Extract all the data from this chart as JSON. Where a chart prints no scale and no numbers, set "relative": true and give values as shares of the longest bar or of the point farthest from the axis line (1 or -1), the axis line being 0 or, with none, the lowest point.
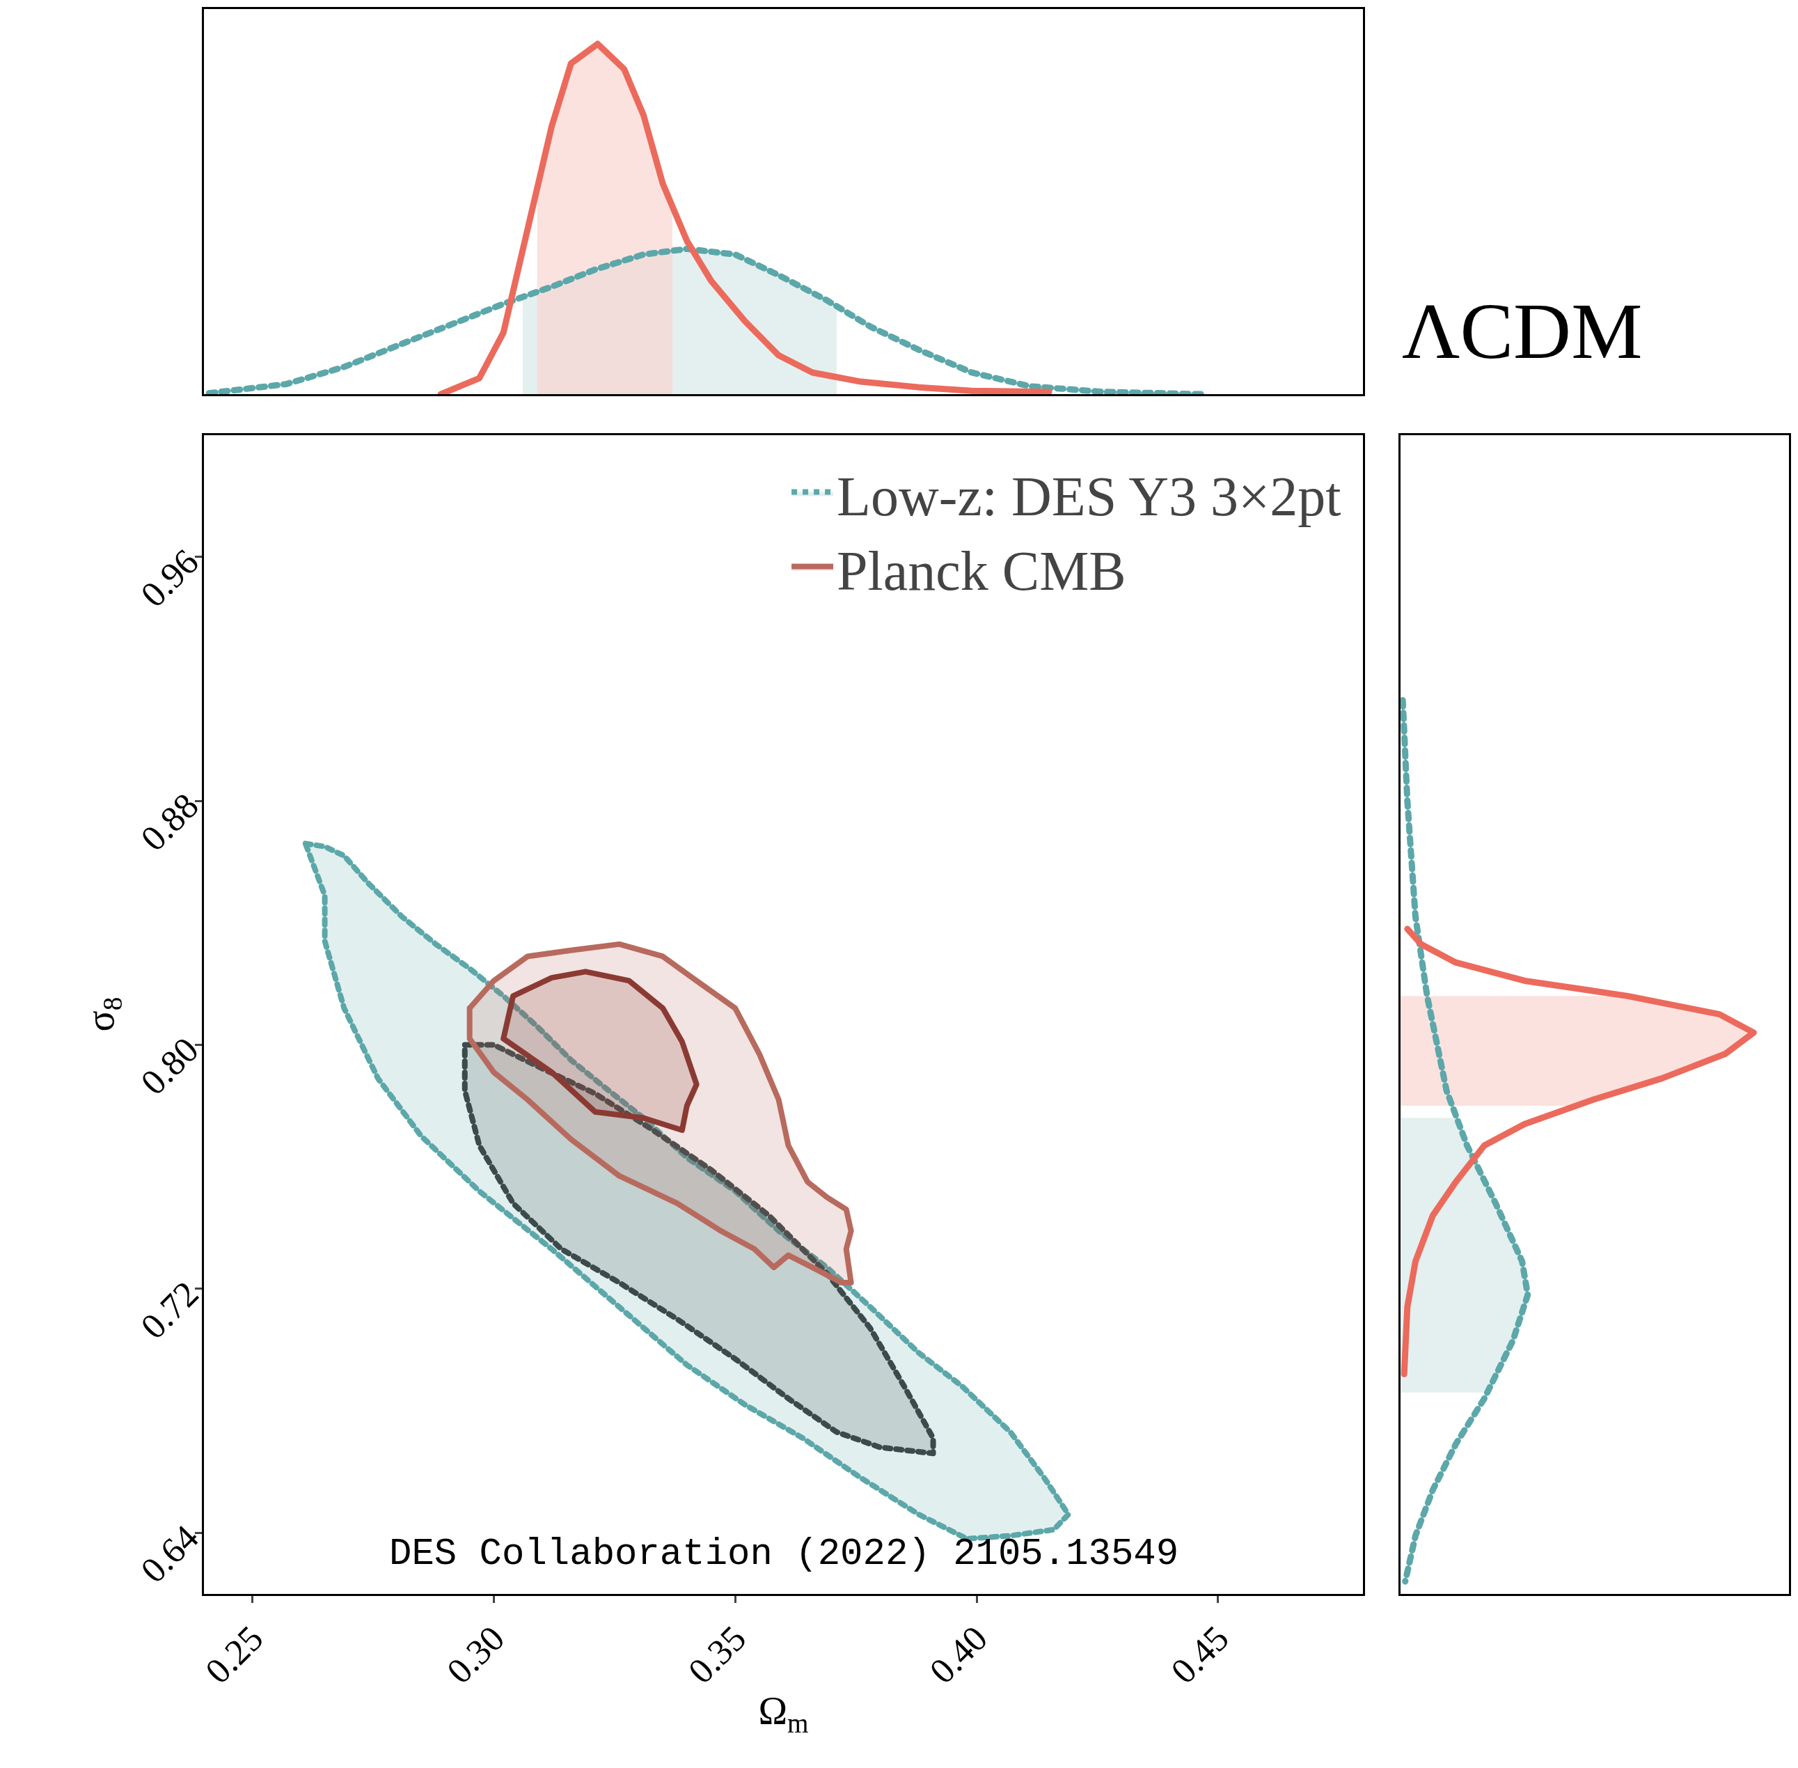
{
  "chart_data": [
    {
      "type": "line",
      "relative": true,
      "xlim": [
        0.24,
        0.48
      ],
      "tick_labels": false,
      "series": [
        {
          "type": "area",
          "color": "#d8e8e8",
          "x": [
            0.306,
            0.312,
            0.321,
            0.331,
            0.34,
            0.35,
            0.359,
            0.369,
            0.371
          ],
          "values": [
            0.28,
            0.307,
            0.356,
            0.399,
            0.415,
            0.399,
            0.34,
            0.268,
            0.255
          ]
        },
        {
          "type": "area",
          "color": "#f9d6d2",
          "x": [
            0.309,
            0.312,
            0.316,
            0.3215,
            0.327,
            0.331,
            0.335,
            0.337
          ],
          "values": [
            0.6,
            0.765,
            0.944,
            1.0,
            0.928,
            0.797,
            0.601,
            0.52
          ]
        },
        {
          "color": "#5ca7a9",
          "line_style": "dotted",
          "x": [
            0.241,
            0.257,
            0.269,
            0.281,
            0.293,
            0.302,
            0.312,
            0.321,
            0.331,
            0.34,
            0.35,
            0.359,
            0.369,
            0.378,
            0.388,
            0.399,
            0.411,
            0.426,
            0.447
          ],
          "values": [
            0.003,
            0.029,
            0.078,
            0.144,
            0.209,
            0.258,
            0.307,
            0.356,
            0.399,
            0.415,
            0.399,
            0.34,
            0.268,
            0.193,
            0.127,
            0.062,
            0.023,
            0.007,
            0
          ]
        },
        {
          "color": "#ec6a5c",
          "line_style": "solid",
          "x": [
            0.289,
            0.297,
            0.302,
            0.307,
            0.312,
            0.316,
            0.3215,
            0.327,
            0.331,
            0.335,
            0.34,
            0.345,
            0.352,
            0.359,
            0.366,
            0.376,
            0.388,
            0.399,
            0.415
          ],
          "values": [
            0,
            0.046,
            0.176,
            0.471,
            0.765,
            0.944,
            1.0,
            0.928,
            0.797,
            0.601,
            0.438,
            0.324,
            0.209,
            0.111,
            0.062,
            0.036,
            0.02,
            0.01,
            0.007
          ]
        }
      ]
    },
    {
      "type": "line",
      "xlabel": "Ω$_{m}$",
      "ylabel": "σ$_{8}$",
      "xlim": [
        0.24,
        0.48
      ],
      "ylim": [
        0.62,
        1.0
      ],
      "xticks": [
        {
          "value": 0.25,
          "label": "0.25"
        },
        {
          "value": 0.3,
          "label": "0.30"
        },
        {
          "value": 0.35,
          "label": "0.35"
        },
        {
          "value": 0.4,
          "label": "0.40"
        },
        {
          "value": 0.45,
          "label": "0.45"
        }
      ],
      "yticks": [
        {
          "value": 0.64,
          "label": "0.64"
        },
        {
          "value": 0.72,
          "label": "0.72"
        },
        {
          "value": 0.8,
          "label": "0.80"
        },
        {
          "value": 0.88,
          "label": "0.88"
        },
        {
          "value": 0.96,
          "label": "0.96"
        }
      ],
      "legend": "top right",
      "annotations": [
        "DES Collaboration (2022) 2105.13549"
      ],
      "series": [
        {
          "type": "area",
          "name": "Low-z: DES Y3 3×2pt",
          "color": "#5ca7a9",
          "line_style": "dotted",
          "x": [
            0.261,
            0.265,
            0.269,
            0.274,
            0.281,
            0.288,
            0.295,
            0.302,
            0.309,
            0.316,
            0.323,
            0.331,
            0.34,
            0.35,
            0.359,
            0.369,
            0.378,
            0.388,
            0.397,
            0.407,
            0.414,
            0.419,
            0.416,
            0.407,
            0.398,
            0.388,
            0.376,
            0.364,
            0.352,
            0.34,
            0.326,
            0.312,
            0.297,
            0.285,
            0.276,
            0.269,
            0.265,
            0.265,
            0.261
          ],
          "values": [
            0.866,
            0.865,
            0.862,
            0.853,
            0.842,
            0.833,
            0.825,
            0.816,
            0.806,
            0.795,
            0.786,
            0.776,
            0.763,
            0.752,
            0.739,
            0.727,
            0.714,
            0.699,
            0.688,
            0.673,
            0.658,
            0.646,
            0.641,
            0.639,
            0.638,
            0.646,
            0.658,
            0.671,
            0.682,
            0.695,
            0.714,
            0.733,
            0.752,
            0.77,
            0.789,
            0.812,
            0.834,
            0.849,
            0.866
          ]
        },
        {
          "type": "area",
          "color": "#3b4a4a",
          "line_style": "dotted",
          "x": [
            0.294,
            0.3,
            0.309,
            0.321,
            0.333,
            0.345,
            0.357,
            0.369,
            0.378,
            0.385,
            0.391,
            0.391,
            0.38,
            0.371,
            0.361,
            0.35,
            0.338,
            0.326,
            0.314,
            0.304,
            0.297,
            0.294,
            0.294
          ],
          "values": [
            0.8,
            0.8,
            0.793,
            0.784,
            0.772,
            0.759,
            0.744,
            0.725,
            0.707,
            0.688,
            0.671,
            0.666,
            0.668,
            0.673,
            0.684,
            0.697,
            0.71,
            0.722,
            0.733,
            0.748,
            0.767,
            0.785,
            0.8
          ]
        },
        {
          "type": "area",
          "name": "Planck CMB",
          "color": "#b86a5e",
          "line_style": "solid",
          "x": [
            0.295,
            0.3,
            0.307,
            0.316,
            0.326,
            0.335,
            0.342,
            0.35,
            0.355,
            0.359,
            0.361,
            0.365,
            0.369,
            0.373,
            0.374,
            0.373,
            0.374,
            0.372,
            0.366,
            0.361,
            0.358,
            0.354,
            0.347,
            0.338,
            0.326,
            0.316,
            0.307,
            0.3,
            0.295,
            0.295
          ],
          "values": [
            0.812,
            0.821,
            0.829,
            0.831,
            0.833,
            0.829,
            0.821,
            0.812,
            0.797,
            0.782,
            0.767,
            0.755,
            0.75,
            0.746,
            0.739,
            0.733,
            0.722,
            0.722,
            0.727,
            0.731,
            0.727,
            0.733,
            0.739,
            0.748,
            0.757,
            0.769,
            0.782,
            0.791,
            0.802,
            0.812
          ]
        },
        {
          "type": "area",
          "color": "#8b3a33",
          "line_style": "solid",
          "x": [
            0.302,
            0.304,
            0.312,
            0.319,
            0.328,
            0.335,
            0.339,
            0.342,
            0.34,
            0.339,
            0.331,
            0.321,
            0.312,
            0.302
          ],
          "values": [
            0.802,
            0.816,
            0.822,
            0.824,
            0.821,
            0.812,
            0.801,
            0.787,
            0.78,
            0.772,
            0.776,
            0.778,
            0.791,
            0.802
          ]
        }
      ]
    },
    {
      "type": "line",
      "title": "ΛCDM",
      "orientation": "horizontal",
      "relative": true,
      "ylim": [
        0.62,
        1.0
      ],
      "tick_labels": false,
      "series": [
        {
          "type": "area",
          "color": "#d8e8e8",
          "x": [
            0.686,
            0.703,
            0.718,
            0.729,
            0.748,
            0.767,
            0.776
          ],
          "values": [
            0.24,
            0.318,
            0.36,
            0.344,
            0.269,
            0.188,
            0.16
          ]
        },
        {
          "type": "area",
          "color": "#f9d6d2",
          "x": [
            0.78,
            0.782,
            0.789,
            0.797,
            0.804,
            0.81,
            0.816
          ],
          "values": [
            0.5,
            0.545,
            0.74,
            0.919,
            1.0,
            0.903,
            0.67
          ]
        },
        {
          "color": "#5ca7a9",
          "line_style": "dotted",
          "x": [
            0.913,
            0.88,
            0.842,
            0.816,
            0.785,
            0.767,
            0.748,
            0.729,
            0.718,
            0.703,
            0.684,
            0.669,
            0.654,
            0.639,
            0.624
          ],
          "values": [
            0.006,
            0.019,
            0.042,
            0.075,
            0.13,
            0.188,
            0.269,
            0.344,
            0.36,
            0.318,
            0.237,
            0.156,
            0.091,
            0.042,
            0.013
          ]
        },
        {
          "color": "#ec6a5c",
          "line_style": "solid",
          "x": [
            0.692,
            0.714,
            0.729,
            0.744,
            0.755,
            0.767,
            0.774,
            0.782,
            0.789,
            0.797,
            0.804,
            0.81,
            0.816,
            0.821,
            0.827,
            0.833,
            0.838
          ],
          "values": [
            0.01,
            0.019,
            0.042,
            0.091,
            0.156,
            0.237,
            0.351,
            0.545,
            0.74,
            0.919,
            1.0,
            0.903,
            0.643,
            0.351,
            0.156,
            0.058,
            0.019
          ]
        }
      ]
    }
  ]
}
